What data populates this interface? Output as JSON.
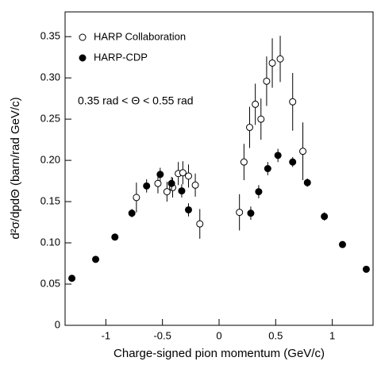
{
  "chart_data": {
    "type": "scatter",
    "xlabel": "Charge-signed pion momentum (GeV/c)",
    "ylabel": "d²σ/dpdΘ (barn/rad GeV/c)",
    "annotation": "0.35 rad < Θ < 0.55 rad",
    "xlim": [
      -1.36,
      1.36
    ],
    "ylim": [
      0,
      0.38
    ],
    "xticks": [
      -1,
      -0.5,
      0,
      0.5,
      1
    ],
    "yticks": [
      0,
      0.05,
      {
        "value": 0.1,
        "label": "0.10"
      },
      0.15,
      {
        "value": 0.2,
        "label": "0.20"
      },
      0.25,
      {
        "value": 0.3,
        "label": "0.30"
      },
      0.35
    ],
    "legend": "upper left",
    "series": [
      {
        "name": "HARP Collaboration",
        "color": "#000000",
        "marker": "open",
        "x": [
          -0.73,
          -0.54,
          -0.46,
          -0.41,
          -0.36,
          -0.32,
          -0.27,
          -0.21,
          -0.17,
          0.18,
          0.22,
          0.27,
          0.32,
          0.37,
          0.42,
          0.47,
          0.54,
          0.65,
          0.74
        ],
        "values": [
          0.155,
          0.172,
          0.162,
          0.167,
          0.184,
          0.185,
          0.181,
          0.17,
          0.123,
          0.137,
          0.198,
          0.24,
          0.268,
          0.25,
          0.296,
          0.318,
          0.323,
          0.271,
          0.211
        ],
        "errors": [
          0.018,
          0.012,
          0.012,
          0.012,
          0.014,
          0.014,
          0.014,
          0.014,
          0.018,
          0.022,
          0.022,
          0.025,
          0.025,
          0.025,
          0.03,
          0.03,
          0.028,
          0.035,
          0.035
        ]
      },
      {
        "name": "HARP-CDP",
        "color": "#000000",
        "marker": "filled",
        "x": [
          -1.3,
          -1.09,
          -0.92,
          -0.77,
          -0.64,
          -0.52,
          -0.42,
          -0.33,
          -0.27,
          0.28,
          0.35,
          0.43,
          0.52,
          0.65,
          0.78,
          0.93,
          1.09,
          1.3
        ],
        "values": [
          0.057,
          0.08,
          0.107,
          0.136,
          0.169,
          0.183,
          0.172,
          0.163,
          0.14,
          0.136,
          0.162,
          0.19,
          0.206,
          0.198,
          0.173,
          0.132,
          0.098,
          0.068
        ],
        "errors": [
          0.004,
          0.004,
          0.004,
          0.005,
          0.008,
          0.008,
          0.008,
          0.008,
          0.008,
          0.008,
          0.008,
          0.008,
          0.008,
          0.006,
          0.005,
          0.005,
          0.004,
          0.004
        ]
      }
    ]
  }
}
